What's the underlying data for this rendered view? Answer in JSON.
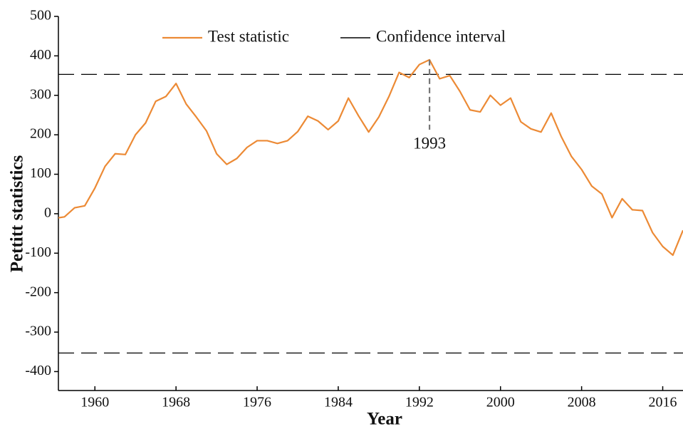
{
  "chart_data": {
    "type": "line",
    "x_label": "Year",
    "y_label": "Pettitt statistics",
    "x": [
      1956,
      1957,
      1958,
      1959,
      1960,
      1961,
      1962,
      1963,
      1964,
      1965,
      1966,
      1967,
      1968,
      1969,
      1970,
      1971,
      1972,
      1973,
      1974,
      1975,
      1976,
      1977,
      1978,
      1979,
      1980,
      1981,
      1982,
      1983,
      1984,
      1985,
      1986,
      1987,
      1988,
      1989,
      1990,
      1991,
      1992,
      1993,
      1994,
      1995,
      1996,
      1997,
      1998,
      1999,
      2000,
      2001,
      2002,
      2003,
      2004,
      2005,
      2006,
      2007,
      2008,
      2009,
      2010,
      2011,
      2012,
      2013,
      2014,
      2015,
      2016,
      2017,
      2018
    ],
    "series": [
      {
        "name": "Test statistic",
        "color": "#ec8a35",
        "values": [
          -12,
          -8,
          15,
          20,
          65,
          120,
          152,
          150,
          200,
          230,
          285,
          297,
          330,
          278,
          245,
          210,
          152,
          125,
          140,
          168,
          185,
          185,
          178,
          185,
          208,
          247,
          235,
          213,
          235,
          293,
          248,
          207,
          245,
          297,
          358,
          345,
          378,
          390,
          342,
          350,
          310,
          263,
          258,
          300,
          275,
          293,
          233,
          215,
          207,
          255,
          195,
          145,
          112,
          70,
          50,
          -10,
          38,
          10,
          8,
          -48,
          -83,
          -105,
          -42
        ]
      }
    ],
    "reference_lines": {
      "name": "Confidence interval",
      "color": "#000000",
      "values": [
        353,
        -353
      ]
    },
    "annotation": {
      "text": "1993",
      "x": 1993
    },
    "xlim": [
      1956.4,
      2018
    ],
    "xticks": [
      1960,
      1968,
      1976,
      1984,
      1992,
      2000,
      2008,
      2016
    ],
    "ylim": [
      -448,
      500
    ],
    "yticks": [
      -400,
      -300,
      -200,
      -100,
      0,
      100,
      200,
      300,
      400,
      500
    ]
  }
}
